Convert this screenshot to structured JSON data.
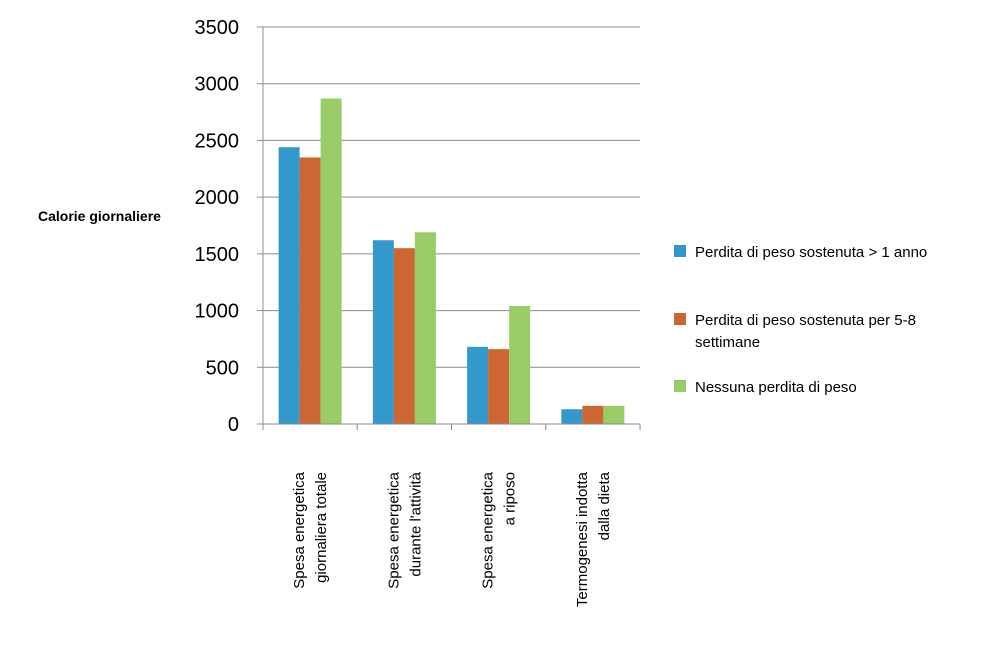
{
  "chart_data": {
    "type": "bar",
    "title": "",
    "xlabel": "",
    "ylabel": "Calorie giornaliere",
    "ylim": [
      0,
      3500
    ],
    "yticks": [
      0,
      500,
      1000,
      1500,
      2000,
      2500,
      3000,
      3500
    ],
    "grid": true,
    "legend_position": "right",
    "categories": [
      [
        "Spesa energetica",
        "giornaliera totale"
      ],
      [
        "Spesa energetica",
        "durante l'attività"
      ],
      [
        "Spesa energetica",
        "a riposo"
      ],
      [
        "Termogenesi indotta",
        "dalla dieta"
      ]
    ],
    "series": [
      {
        "name": "Perdita di peso sostenuta > 1 anno",
        "legend_lines": [
          "Perdita di peso sostenuta > 1 anno"
        ],
        "color": "#3399CC",
        "values": [
          2440,
          1620,
          680,
          130
        ]
      },
      {
        "name": "Perdita di peso sostenuta per 5-8 settimane",
        "legend_lines": [
          "Perdita di peso sostenuta per 5-8",
          "settimane"
        ],
        "color": "#CC6633",
        "values": [
          2350,
          1550,
          660,
          160
        ]
      },
      {
        "name": "Nessuna perdita di peso",
        "legend_lines": [
          "Nessuna perdita di peso"
        ],
        "color": "#99CC66",
        "values": [
          2870,
          1690,
          1040,
          160
        ]
      }
    ]
  }
}
